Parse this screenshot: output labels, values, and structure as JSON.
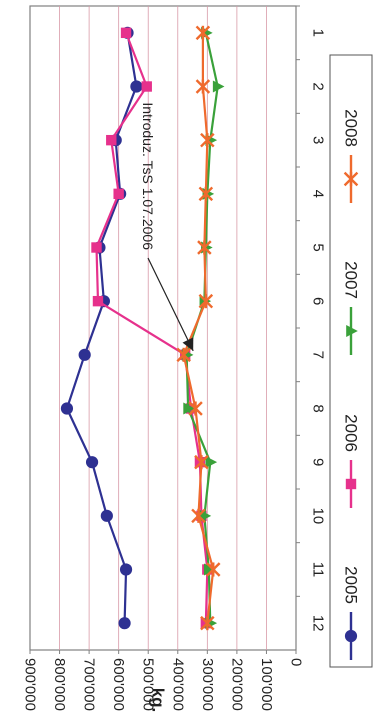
{
  "chart_data": {
    "type": "line",
    "orientation": "rotated-90-clockwise",
    "title": "",
    "xlabel": "",
    "ylabel": "kg.",
    "categories": [
      "1",
      "2",
      "3",
      "4",
      "5",
      "6",
      "7",
      "8",
      "9",
      "10",
      "11",
      "12"
    ],
    "ylim": [
      0,
      900000
    ],
    "yticks": [
      "0",
      "100'000",
      "200'000",
      "300'000",
      "400'000",
      "500'000",
      "600'000",
      "700'000",
      "800'000",
      "900'000"
    ],
    "grid": true,
    "legend_position": "bottom",
    "annotation": {
      "text": "Introduz. TsS 1.07.2006",
      "points_to": {
        "series": "2006",
        "x": "7"
      }
    },
    "series": [
      {
        "name": "2005",
        "color": "#2e3192",
        "marker": "circle",
        "values": [
          570000,
          540000,
          610000,
          595000,
          665000,
          650000,
          715000,
          775000,
          690000,
          640000,
          575000,
          580000
        ]
      },
      {
        "name": "2006",
        "color": "#e6318c",
        "marker": "square",
        "values": [
          575000,
          505000,
          625000,
          600000,
          675000,
          670000,
          375000,
          355000,
          325000,
          320000,
          300000,
          305000
        ]
      },
      {
        "name": "2007",
        "color": "#3aa13a",
        "marker": "triangle",
        "values": [
          305000,
          265000,
          290000,
          300000,
          305000,
          310000,
          370000,
          365000,
          290000,
          310000,
          295000,
          290000
        ]
      },
      {
        "name": "2008",
        "color": "#ef6a2d",
        "marker": "x",
        "values": [
          315000,
          315000,
          300000,
          305000,
          310000,
          305000,
          380000,
          340000,
          320000,
          330000,
          280000,
          300000
        ]
      }
    ]
  }
}
